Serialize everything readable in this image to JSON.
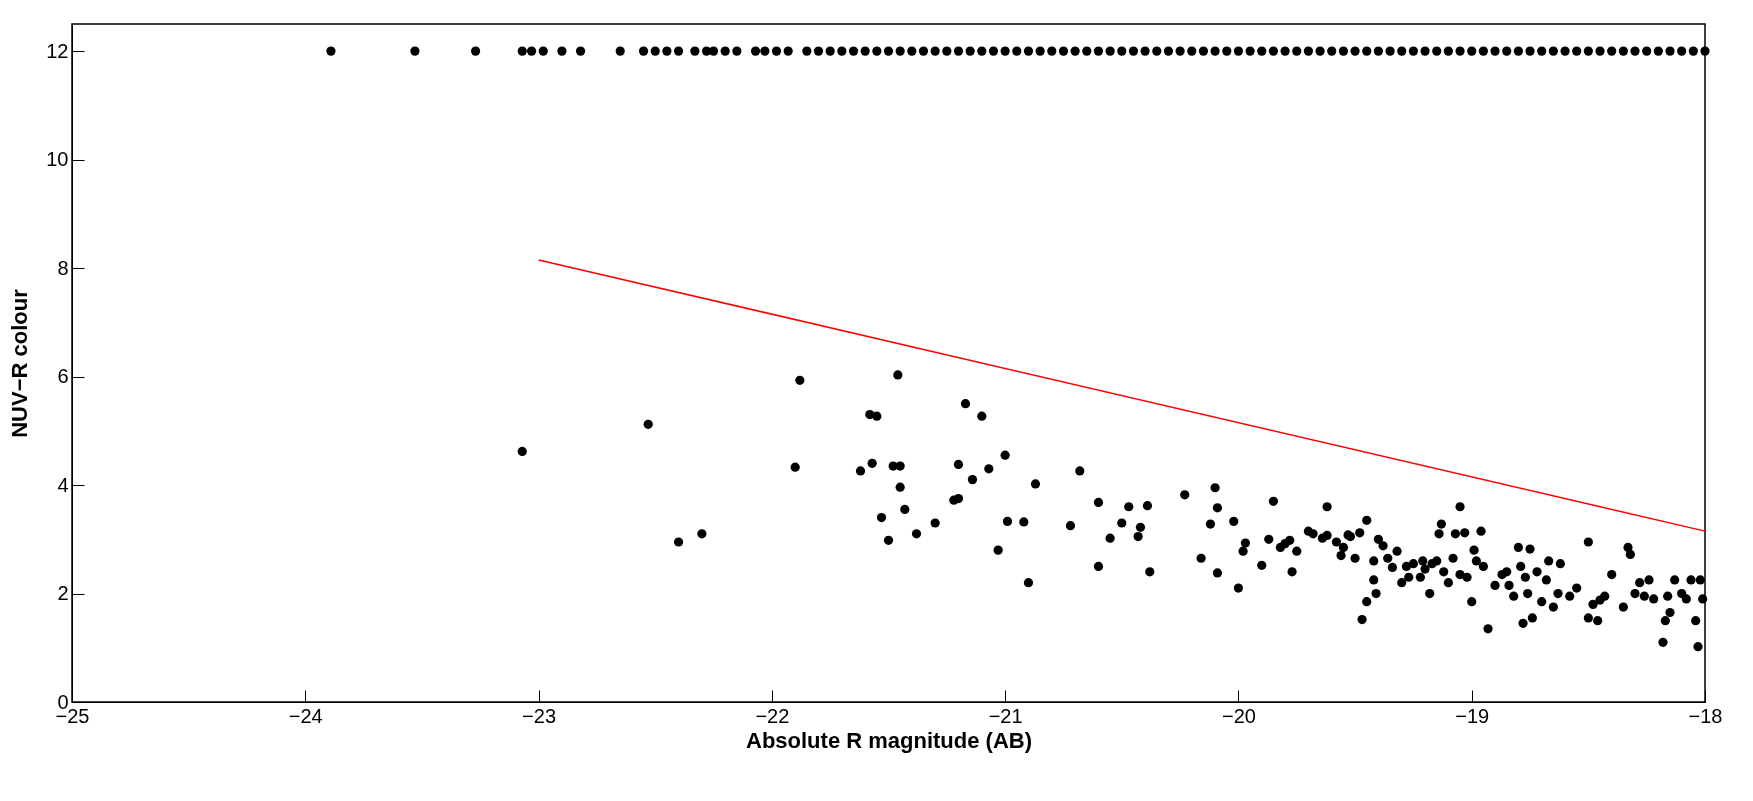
{
  "chart_data": {
    "type": "scatter",
    "xlabel": "Absolute R magnitude (AB)",
    "ylabel": "NUV−R colour",
    "xlim": [
      -25,
      -18
    ],
    "ylim": [
      0,
      12.5
    ],
    "xticks": [
      -25,
      -24,
      -23,
      -22,
      -21,
      -20,
      -19,
      -18
    ],
    "yticks": [
      0,
      2,
      4,
      6,
      8,
      10,
      12
    ],
    "grid": false,
    "series": [
      {
        "color": "#000000",
        "marker": "circle",
        "x": [
          -23.07,
          -22.53,
          -22.4,
          -22.3,
          -21.9,
          -21.88,
          -21.62,
          -21.58,
          -21.55,
          -21.57,
          -21.53,
          -21.5,
          -21.48,
          -21.46,
          -21.45,
          -21.45,
          -21.43,
          -21.38,
          -21.3,
          -21.22,
          -21.2,
          -21.2,
          -21.17,
          -21.14,
          -21.1,
          -21.07,
          -21.03,
          -21.0,
          -20.99,
          -20.92,
          -20.9,
          -20.87,
          -20.72,
          -20.68,
          -20.6,
          -20.6,
          -20.55,
          -20.5,
          -20.47,
          -20.43,
          -20.42,
          -20.39,
          -20.38,
          -20.23,
          -20.16,
          -20.12,
          -20.1,
          -20.09,
          -20.09,
          -20.02,
          -20.0,
          -19.98,
          -19.97,
          -19.9,
          -19.87,
          -19.85,
          -19.82,
          -19.8,
          -19.78,
          -19.77,
          -19.75,
          -19.7,
          -19.68,
          -19.64,
          -19.62,
          -19.62,
          -19.58,
          -19.56,
          -19.55,
          -19.53,
          -19.52,
          -19.5,
          -19.48,
          -19.47,
          -19.45,
          -19.45,
          -19.42,
          -19.42,
          -19.41,
          -19.4,
          -19.38,
          -19.36,
          -19.34,
          -19.32,
          -19.3,
          -19.28,
          -19.27,
          -19.25,
          -19.22,
          -19.21,
          -19.2,
          -19.18,
          -19.17,
          -19.15,
          -19.14,
          -19.13,
          -19.12,
          -19.1,
          -19.08,
          -19.07,
          -19.05,
          -19.05,
          -19.03,
          -19.02,
          -19.0,
          -18.99,
          -18.98,
          -18.96,
          -18.95,
          -18.93,
          -18.9,
          -18.87,
          -18.85,
          -18.84,
          -18.82,
          -18.8,
          -18.79,
          -18.78,
          -18.77,
          -18.76,
          -18.75,
          -18.74,
          -18.72,
          -18.7,
          -18.68,
          -18.67,
          -18.65,
          -18.63,
          -18.62,
          -18.58,
          -18.55,
          -18.5,
          -18.5,
          -18.48,
          -18.46,
          -18.45,
          -18.43,
          -18.4,
          -18.35,
          -18.33,
          -18.32,
          -18.3,
          -18.28,
          -18.26,
          -18.24,
          -18.22,
          -18.18,
          -18.17,
          -18.16,
          -18.15,
          -18.13,
          -18.1,
          -18.08,
          -18.06,
          -18.04,
          -18.03,
          -18.02,
          -18.01,
          -23.89,
          -23.53,
          -23.27,
          -23.07,
          -23.03,
          -22.98,
          -22.9,
          -22.82,
          -22.65,
          -22.55,
          -22.5,
          -22.45,
          -22.4,
          -22.33,
          -22.28,
          -22.25,
          -22.2,
          -22.15,
          -22.07,
          -22.03,
          -21.98,
          -21.93,
          -21.85,
          -21.8,
          -21.75,
          -21.7,
          -21.65,
          -21.6,
          -21.55,
          -21.5,
          -21.45,
          -21.4,
          -21.35,
          -21.3,
          -21.25,
          -21.2,
          -21.15,
          -21.1,
          -21.05,
          -21.0,
          -20.95,
          -20.9,
          -20.85,
          -20.8,
          -20.75,
          -20.7,
          -20.65,
          -20.6,
          -20.55,
          -20.5,
          -20.45,
          -20.4,
          -20.35,
          -20.3,
          -20.25,
          -20.2,
          -20.15,
          -20.1,
          -20.05,
          -20.0,
          -19.95,
          -19.9,
          -19.85,
          -19.8,
          -19.75,
          -19.7,
          -19.65,
          -19.6,
          -19.55,
          -19.5,
          -19.45,
          -19.4,
          -19.35,
          -19.3,
          -19.25,
          -19.2,
          -19.15,
          -19.1,
          -19.05,
          -19.0,
          -18.95,
          -18.9,
          -18.85,
          -18.8,
          -18.75,
          -18.7,
          -18.65,
          -18.6,
          -18.55,
          -18.5,
          -18.45,
          -18.4,
          -18.35,
          -18.3,
          -18.25,
          -18.2,
          -18.15,
          -18.1,
          -18.05,
          -18.0
        ],
        "values": [
          4.62,
          5.12,
          2.95,
          3.1,
          4.33,
          5.93,
          4.26,
          5.3,
          5.27,
          4.4,
          3.4,
          2.98,
          4.35,
          6.03,
          4.35,
          3.96,
          3.55,
          3.1,
          3.3,
          3.72,
          3.75,
          4.38,
          5.5,
          4.1,
          5.27,
          4.3,
          2.8,
          4.55,
          3.33,
          3.32,
          2.2,
          4.02,
          3.25,
          4.26,
          3.68,
          2.5,
          3.02,
          3.3,
          3.6,
          3.05,
          3.22,
          3.62,
          2.4,
          3.82,
          2.65,
          3.28,
          3.95,
          3.58,
          2.38,
          3.33,
          2.1,
          2.78,
          2.93,
          2.52,
          3.0,
          3.7,
          2.85,
          2.92,
          2.98,
          2.4,
          2.78,
          3.15,
          3.1,
          3.02,
          3.6,
          3.07,
          2.95,
          2.7,
          2.85,
          3.08,
          3.05,
          2.65,
          3.12,
          1.52,
          3.35,
          1.85,
          2.6,
          2.25,
          2.0,
          3.0,
          2.88,
          2.65,
          2.48,
          2.78,
          2.2,
          2.5,
          2.3,
          2.55,
          2.3,
          2.6,
          2.45,
          2.0,
          2.55,
          2.6,
          3.1,
          3.28,
          2.4,
          2.2,
          2.65,
          3.1,
          3.6,
          2.35,
          3.12,
          2.3,
          1.85,
          2.8,
          2.6,
          3.15,
          2.5,
          1.35,
          2.15,
          2.35,
          2.4,
          2.15,
          1.95,
          2.85,
          2.5,
          1.45,
          2.3,
          2.0,
          2.82,
          1.55,
          2.4,
          1.85,
          2.25,
          2.6,
          1.75,
          2.0,
          2.55,
          1.95,
          2.1,
          2.95,
          1.55,
          1.8,
          1.5,
          1.88,
          1.95,
          2.35,
          1.75,
          2.85,
          2.72,
          2.0,
          2.2,
          1.95,
          2.25,
          1.9,
          1.1,
          1.5,
          1.95,
          1.65,
          2.25,
          2.0,
          1.9,
          2.25,
          1.5,
          1.02,
          2.25,
          1.9,
          12,
          12,
          12,
          12,
          12,
          12,
          12,
          12,
          12,
          12,
          12,
          12,
          12,
          12,
          12,
          12,
          12,
          12,
          12,
          12,
          12,
          12,
          12,
          12,
          12,
          12,
          12,
          12,
          12,
          12,
          12,
          12,
          12,
          12,
          12,
          12,
          12,
          12,
          12,
          12,
          12,
          12,
          12,
          12,
          12,
          12,
          12,
          12,
          12,
          12,
          12,
          12,
          12,
          12,
          12,
          12,
          12,
          12,
          12,
          12,
          12,
          12,
          12,
          12,
          12,
          12,
          12,
          12,
          12,
          12,
          12,
          12,
          12,
          12,
          12,
          12,
          12,
          12,
          12,
          12,
          12,
          12,
          12,
          12,
          12,
          12,
          12,
          12,
          12,
          12,
          12,
          12,
          12,
          12,
          12,
          12,
          12,
          12,
          12,
          12
        ]
      },
      {
        "type": "line",
        "color": "#ff0000",
        "x": [
          -23,
          -18
        ],
        "values": [
          8.15,
          3.15
        ]
      }
    ]
  }
}
